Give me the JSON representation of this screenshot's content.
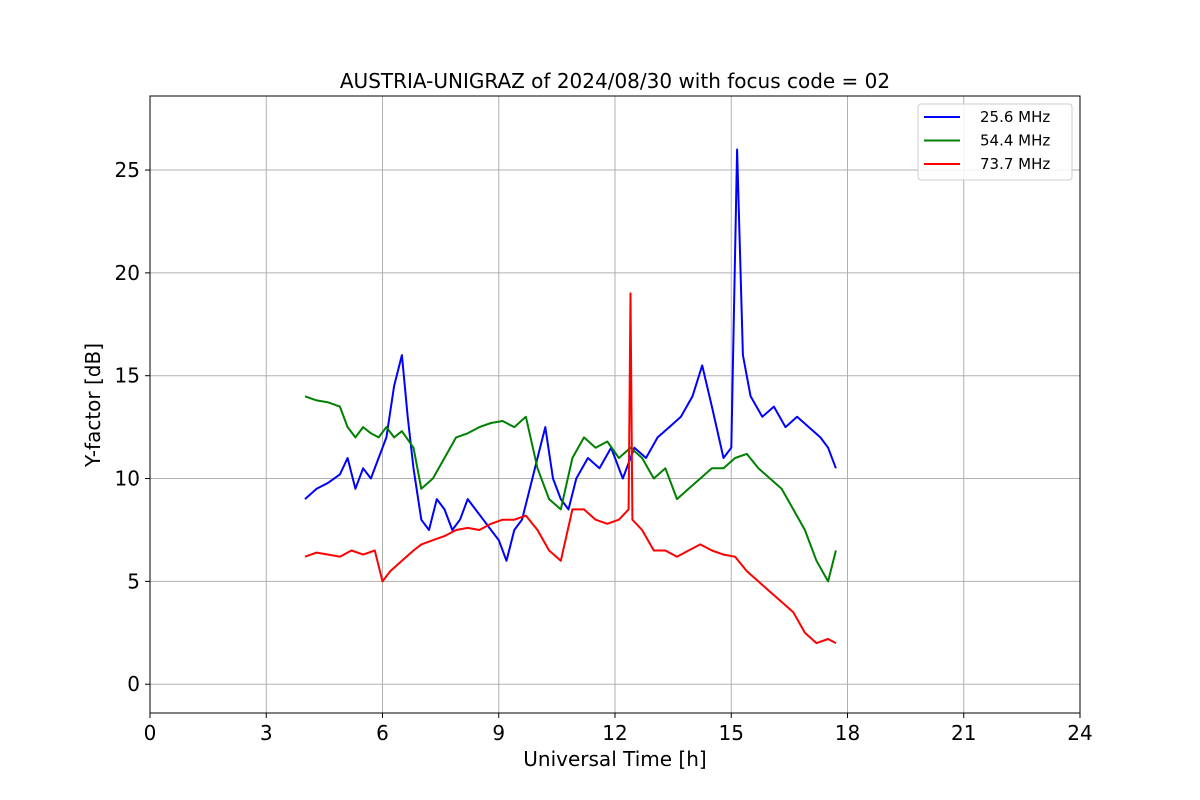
{
  "chart_data": {
    "type": "line",
    "title": "AUSTRIA-UNIGRAZ of 2024/08/30 with focus code = 02",
    "xlabel": "Universal Time [h]",
    "ylabel": "Y-factor [dB]",
    "xlim": [
      0,
      24
    ],
    "ylim": [
      -1.4,
      28.6
    ],
    "xticks": [
      "0",
      "3",
      "6",
      "9",
      "12",
      "15",
      "18",
      "21",
      "24"
    ],
    "yticks": [
      "0",
      "5",
      "10",
      "15",
      "20",
      "25"
    ],
    "grid": true,
    "legend_position": "top-right",
    "series": [
      {
        "name": "25.6 MHz",
        "color": "#0000ff",
        "x": [
          4.0,
          4.3,
          4.6,
          4.9,
          5.1,
          5.3,
          5.5,
          5.7,
          5.9,
          6.1,
          6.3,
          6.5,
          6.65,
          6.8,
          7.0,
          7.2,
          7.4,
          7.6,
          7.8,
          8.0,
          8.2,
          8.4,
          8.6,
          8.8,
          9.0,
          9.2,
          9.4,
          9.6,
          9.8,
          10.0,
          10.2,
          10.4,
          10.6,
          10.8,
          11.0,
          11.3,
          11.6,
          11.9,
          12.2,
          12.5,
          12.8,
          13.1,
          13.4,
          13.7,
          14.0,
          14.25,
          14.5,
          14.8,
          15.0,
          15.15,
          15.3,
          15.5,
          15.8,
          16.1,
          16.4,
          16.7,
          17.0,
          17.3,
          17.5,
          17.7
        ],
        "y": [
          9.0,
          9.5,
          9.8,
          10.2,
          11.0,
          9.5,
          10.5,
          10.0,
          11.0,
          12.0,
          14.5,
          16.0,
          13.0,
          10.5,
          8.0,
          7.5,
          9.0,
          8.5,
          7.5,
          8.0,
          9.0,
          8.5,
          8.0,
          7.5,
          7.0,
          6.0,
          7.5,
          8.0,
          9.5,
          11.0,
          12.5,
          10.0,
          9.0,
          8.5,
          10.0,
          11.0,
          10.5,
          11.5,
          10.0,
          11.5,
          11.0,
          12.0,
          12.5,
          13.0,
          14.0,
          15.5,
          13.5,
          11.0,
          11.5,
          26.0,
          16.0,
          14.0,
          13.0,
          13.5,
          12.5,
          13.0,
          12.5,
          12.0,
          11.5,
          10.5
        ]
      },
      {
        "name": "54.4 MHz",
        "color": "#008000",
        "x": [
          4.0,
          4.3,
          4.6,
          4.9,
          5.1,
          5.3,
          5.5,
          5.7,
          5.9,
          6.1,
          6.3,
          6.5,
          6.8,
          7.0,
          7.3,
          7.6,
          7.9,
          8.2,
          8.5,
          8.8,
          9.1,
          9.4,
          9.7,
          10.0,
          10.3,
          10.6,
          10.9,
          11.2,
          11.5,
          11.8,
          12.1,
          12.4,
          12.7,
          13.0,
          13.3,
          13.6,
          13.9,
          14.2,
          14.5,
          14.8,
          15.1,
          15.4,
          15.7,
          16.0,
          16.3,
          16.6,
          16.9,
          17.2,
          17.5,
          17.7
        ],
        "y": [
          14.0,
          13.8,
          13.7,
          13.5,
          12.5,
          12.0,
          12.5,
          12.2,
          12.0,
          12.5,
          12.0,
          12.3,
          11.5,
          9.5,
          10.0,
          11.0,
          12.0,
          12.2,
          12.5,
          12.7,
          12.8,
          12.5,
          13.0,
          10.5,
          9.0,
          8.5,
          11.0,
          12.0,
          11.5,
          11.8,
          11.0,
          11.5,
          11.0,
          10.0,
          10.5,
          9.0,
          9.5,
          10.0,
          10.5,
          10.5,
          11.0,
          11.2,
          10.5,
          10.0,
          9.5,
          8.5,
          7.5,
          6.0,
          5.0,
          6.5
        ]
      },
      {
        "name": "73.7 MHz",
        "color": "#ff0000",
        "x": [
          4.0,
          4.3,
          4.6,
          4.9,
          5.2,
          5.5,
          5.8,
          6.0,
          6.2,
          6.5,
          6.8,
          7.0,
          7.3,
          7.6,
          7.9,
          8.2,
          8.5,
          8.8,
          9.1,
          9.4,
          9.7,
          10.0,
          10.3,
          10.6,
          10.9,
          11.2,
          11.5,
          11.8,
          12.1,
          12.35,
          12.4,
          12.45,
          12.7,
          13.0,
          13.3,
          13.6,
          13.9,
          14.2,
          14.5,
          14.8,
          15.1,
          15.4,
          15.7,
          16.0,
          16.3,
          16.6,
          16.9,
          17.2,
          17.5,
          17.7
        ],
        "y": [
          6.2,
          6.4,
          6.3,
          6.2,
          6.5,
          6.3,
          6.5,
          5.0,
          5.5,
          6.0,
          6.5,
          6.8,
          7.0,
          7.2,
          7.5,
          7.6,
          7.5,
          7.8,
          8.0,
          8.0,
          8.2,
          7.5,
          6.5,
          6.0,
          8.5,
          8.5,
          8.0,
          7.8,
          8.0,
          8.5,
          19.0,
          8.0,
          7.5,
          6.5,
          6.5,
          6.2,
          6.5,
          6.8,
          6.5,
          6.3,
          6.2,
          5.5,
          5.0,
          4.5,
          4.0,
          3.5,
          2.5,
          2.0,
          2.2,
          2.0
        ]
      }
    ]
  }
}
